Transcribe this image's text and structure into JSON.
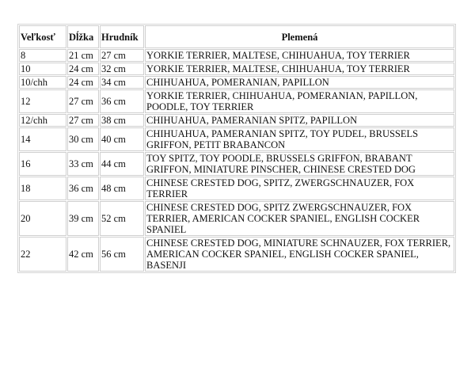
{
  "table": {
    "headers": [
      "Veľkosť",
      "Dĺžka",
      "Hrudník",
      "Plemená"
    ],
    "rows": [
      [
        "8",
        "21 cm",
        "27 cm",
        "YORKIE TERRIER, MALTESE, CHIHUAHUA, TOY TERRIER"
      ],
      [
        "10",
        "24 cm",
        "32 cm",
        "YORKIE TERRIER, MALTESE, CHIHUAHUA, TOY TERRIER"
      ],
      [
        "10/chh",
        "24 cm",
        "34 cm",
        "CHIHUAHUA, POMERANIAN, PAPILLON"
      ],
      [
        "12",
        "27 cm",
        "36 cm",
        "YORKIE TERRIER, CHIHUAHUA, POMERANIAN, PAPILLON, POODLE, TOY TERRIER"
      ],
      [
        "12/chh",
        "27 cm",
        "38 cm",
        "CHIHUAHUA, PAMERANIAN SPITZ, PAPILLON"
      ],
      [
        "14",
        "30 cm",
        "40 cm",
        "CHIHUAHUA, PAMERANIAN SPITZ, TOY PUDEL, BRUSSELS GRIFFON, PETIT BRABANCON"
      ],
      [
        "16",
        "33 cm",
        "44 cm",
        "TOY SPITZ, TOY POODLE, BRUSSELS GRIFFON, BRABANT GRIFFON, MINIATURE PINSCHER, CHINESE CRESTED DOG"
      ],
      [
        "18",
        "36 cm",
        "48 cm",
        "CHINESE CRESTED DOG, SPITZ, ZWERGSCHNAUZER, FOX TERRIER"
      ],
      [
        "20",
        "39 cm",
        "52 cm",
        "CHINESE CRESTED DOG, SPITZ ZWERGSCHNAUZER, FOX TERRIER, AMERICAN COCKER SPANIEL, ENGLISH COCKER SPANIEL"
      ],
      [
        "22",
        "42 cm",
        "56 cm",
        "CHINESE CRESTED DOG, MINIATURE SCHNAUZER, FOX TERRIER, AMERICAN COCKER SPANIEL, ENGLISH COCKER SPANIEL, BASENJI"
      ]
    ]
  }
}
